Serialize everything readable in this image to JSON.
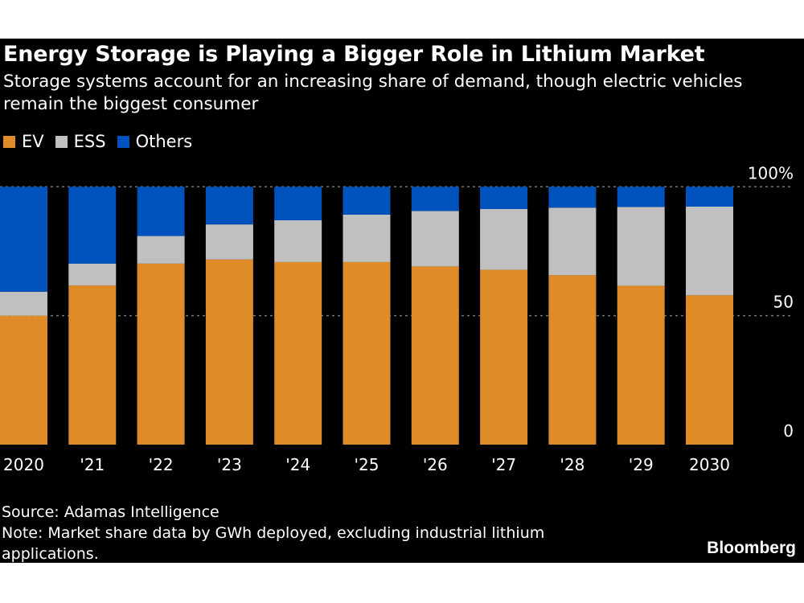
{
  "title": "Energy Storage is Playing a Bigger Role in Lithium Market",
  "subtitle": "Storage systems account for an increasing share of demand, though electric vehicles remain the biggest consumer",
  "source": "Source: Adamas Intelligence",
  "note": "Note: Market share data by GWh deployed, excluding industrial lithium applications.",
  "logo": "Bloomberg",
  "chart_data": {
    "type": "bar",
    "stacked": true,
    "categories": [
      "2020",
      "'21",
      "'22",
      "'23",
      "'24",
      "'25",
      "'26",
      "'27",
      "'28",
      "'29",
      "2030"
    ],
    "series": [
      {
        "name": "EV",
        "color": "#df8b27",
        "values": [
          50,
          61.7,
          70.2,
          71.8,
          70.8,
          70.8,
          69.1,
          67.8,
          65.7,
          61.6,
          57.9
        ]
      },
      {
        "name": "ESS",
        "color": "#c0c0c0",
        "values": [
          9.3,
          8.5,
          10.7,
          13.6,
          16.2,
          18.4,
          21.5,
          23.6,
          26.2,
          30.6,
          34.4
        ]
      },
      {
        "name": "Others",
        "color": "#0052bd",
        "values": [
          40.7,
          29.8,
          19.1,
          14.6,
          13.0,
          10.8,
          9.4,
          8.6,
          8.1,
          7.8,
          7.7
        ]
      }
    ],
    "ylim": [
      0,
      100
    ],
    "yticks": [
      {
        "value": 0,
        "label": "0"
      },
      {
        "value": 50,
        "label": "50"
      },
      {
        "value": 100,
        "label": "100%"
      }
    ],
    "y_axis_position": "right",
    "grid": "dotted horizontal at 50 and 100",
    "legend_position": "top-left",
    "xlabel": "",
    "ylabel": ""
  }
}
